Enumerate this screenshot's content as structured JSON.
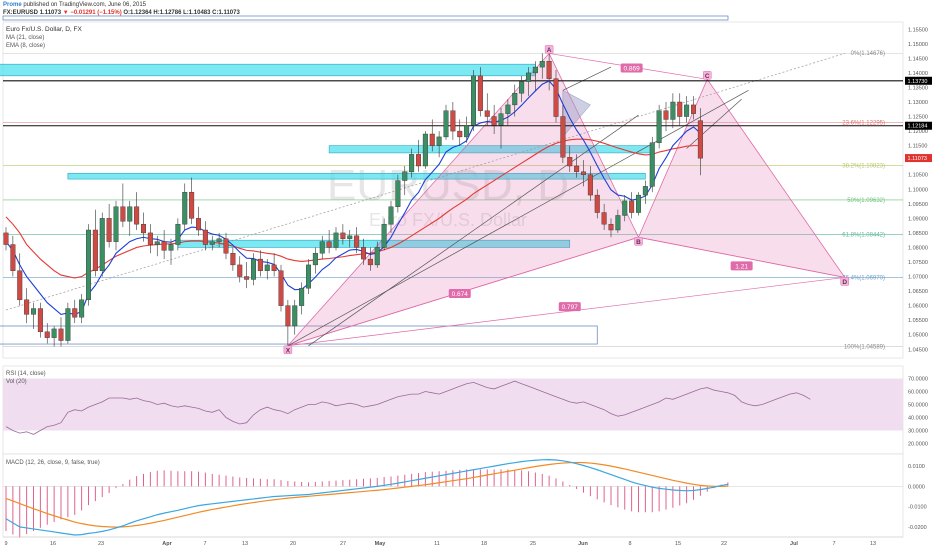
{
  "header": {
    "user": "Prome",
    "published": "published on TradingView.com, June 06, 2015",
    "symbol": "FX:EURUSD",
    "last": "1.11073",
    "change": "−0.01291 (−1.15%)",
    "ohlc": "O:1.12364 H:1.12786 L:1.10483 C:1.11073"
  },
  "chart_data": {
    "type": "candlestick",
    "symbol_title": "Euro Fx/U.S. Dollar, D, FX",
    "watermark": "EURUSD, D",
    "watermark_sub": "Euro FX/U.S. Dollar",
    "indicator_labels": [
      "MA (21, close)",
      "EMA (8, close)"
    ],
    "colors": {
      "up": "#3c8f64",
      "down": "#d04a44",
      "ma": "#e53935",
      "ema": "#1e3fd9",
      "pattern": "#e06aaa",
      "zone": "#50e0ec",
      "fib": "#8fd0a0",
      "rsi": "#9a6a9a",
      "macd": "#3aa7e0",
      "signal": "#f28a24",
      "hist": "#e0608e"
    },
    "x_ticks": [
      "9",
      "16",
      "23",
      "Apr",
      "7",
      "13",
      "20",
      "27",
      "May",
      "11",
      "18",
      "25",
      "Jun",
      "8",
      "15",
      "22",
      "Jul",
      "7",
      "13"
    ],
    "y_ticks": [
      "1.15500",
      "1.15000",
      "1.14500",
      "1.14000",
      "1.13500",
      "1.13000",
      "1.12500",
      "1.12000",
      "1.11500",
      "1.11000",
      "1.10500",
      "1.10000",
      "1.09500",
      "1.09000",
      "1.08500",
      "1.08000",
      "1.07500",
      "1.07000",
      "1.06500",
      "1.06000",
      "1.05500",
      "1.05000",
      "1.04500"
    ],
    "price_badges": [
      {
        "label": "1.13730",
        "value": 1.1373,
        "color": "#000000"
      },
      {
        "label": "1.12184",
        "value": 1.12184,
        "color": "#000000"
      },
      {
        "label": "1.11073",
        "value": 1.11073,
        "color": "#e0322f"
      }
    ],
    "fib_levels": [
      {
        "label": "0%(1.14676)",
        "value": 1.14676
      },
      {
        "label": "23.6%(1.12295)",
        "value": 1.12295
      },
      {
        "label": "38.2%(1.10823)",
        "value": 1.10823
      },
      {
        "label": "50%(1.09632)",
        "value": 1.09632
      },
      {
        "label": "61.8%(1.08442)",
        "value": 1.08442
      },
      {
        "label": "76.4%(1.06970)",
        "value": 1.0697
      },
      {
        "label": "100%(1.04589)",
        "value": 1.04589
      }
    ],
    "harmonic_points": [
      {
        "label": "X",
        "idx": 41,
        "price": 1.0462
      },
      {
        "label": "A",
        "idx": 79,
        "price": 1.1467
      },
      {
        "label": "B",
        "idx": 92,
        "price": 1.0835
      },
      {
        "label": "C",
        "idx": 102,
        "price": 1.1378
      },
      {
        "label": "D",
        "idx": 122,
        "price": 1.0697
      }
    ],
    "ratios": [
      {
        "label": "0.869",
        "idx": 91,
        "price": 1.1415
      },
      {
        "label": "0.674",
        "idx": 66,
        "price": 1.064
      },
      {
        "label": "0.797",
        "idx": 82,
        "price": 1.0595
      },
      {
        "label": "1.21",
        "idx": 107,
        "price": 1.0735
      }
    ],
    "candles": [
      [
        1.085,
        1.087,
        1.079,
        1.081
      ],
      [
        1.081,
        1.084,
        1.07,
        1.072
      ],
      [
        1.072,
        1.078,
        1.06,
        1.062
      ],
      [
        1.062,
        1.066,
        1.054,
        1.057
      ],
      [
        1.057,
        1.061,
        1.052,
        1.059
      ],
      [
        1.059,
        1.061,
        1.049,
        1.051
      ],
      [
        1.051,
        1.054,
        1.047,
        1.049
      ],
      [
        1.049,
        1.053,
        1.046,
        1.052
      ],
      [
        1.052,
        1.056,
        1.046,
        1.048
      ],
      [
        1.048,
        1.061,
        1.047,
        1.059
      ],
      [
        1.059,
        1.062,
        1.054,
        1.056
      ],
      [
        1.056,
        1.064,
        1.054,
        1.062
      ],
      [
        1.062,
        1.088,
        1.06,
        1.086
      ],
      [
        1.086,
        1.093,
        1.07,
        1.072
      ],
      [
        1.072,
        1.092,
        1.07,
        1.09
      ],
      [
        1.09,
        1.095,
        1.08,
        1.082
      ],
      [
        1.082,
        1.096,
        1.079,
        1.094
      ],
      [
        1.094,
        1.102,
        1.087,
        1.089
      ],
      [
        1.089,
        1.096,
        1.084,
        1.094
      ],
      [
        1.094,
        1.099,
        1.086,
        1.088
      ],
      [
        1.088,
        1.092,
        1.082,
        1.085
      ],
      [
        1.085,
        1.088,
        1.078,
        1.081
      ],
      [
        1.081,
        1.084,
        1.077,
        1.082
      ],
      [
        1.082,
        1.086,
        1.076,
        1.079
      ],
      [
        1.079,
        1.083,
        1.074,
        1.081
      ],
      [
        1.081,
        1.09,
        1.079,
        1.088
      ],
      [
        1.088,
        1.102,
        1.086,
        1.099
      ],
      [
        1.099,
        1.104,
        1.088,
        1.09
      ],
      [
        1.09,
        1.094,
        1.084,
        1.086
      ],
      [
        1.086,
        1.089,
        1.079,
        1.081
      ],
      [
        1.081,
        1.084,
        1.079,
        1.082
      ],
      [
        1.082,
        1.085,
        1.08,
        1.083
      ],
      [
        1.083,
        1.085,
        1.076,
        1.078
      ],
      [
        1.078,
        1.08,
        1.072,
        1.074
      ],
      [
        1.074,
        1.077,
        1.068,
        1.07
      ],
      [
        1.07,
        1.075,
        1.066,
        1.069
      ],
      [
        1.069,
        1.078,
        1.067,
        1.076
      ],
      [
        1.076,
        1.079,
        1.07,
        1.072
      ],
      [
        1.072,
        1.076,
        1.069,
        1.074
      ],
      [
        1.074,
        1.078,
        1.07,
        1.072
      ],
      [
        1.072,
        1.074,
        1.058,
        1.06
      ],
      [
        1.06,
        1.062,
        1.0462,
        1.053
      ],
      [
        1.053,
        1.062,
        1.05,
        1.06
      ],
      [
        1.06,
        1.068,
        1.057,
        1.066
      ],
      [
        1.066,
        1.076,
        1.064,
        1.074
      ],
      [
        1.074,
        1.08,
        1.071,
        1.078
      ],
      [
        1.078,
        1.084,
        1.076,
        1.082
      ],
      [
        1.082,
        1.086,
        1.078,
        1.08
      ],
      [
        1.08,
        1.087,
        1.079,
        1.085
      ],
      [
        1.085,
        1.088,
        1.081,
        1.083
      ],
      [
        1.083,
        1.086,
        1.08,
        1.084
      ],
      [
        1.084,
        1.087,
        1.078,
        1.08
      ],
      [
        1.08,
        1.083,
        1.074,
        1.076
      ],
      [
        1.076,
        1.08,
        1.072,
        1.074
      ],
      [
        1.074,
        1.082,
        1.073,
        1.08
      ],
      [
        1.08,
        1.09,
        1.079,
        1.088
      ],
      [
        1.088,
        1.096,
        1.085,
        1.094
      ],
      [
        1.094,
        1.105,
        1.092,
        1.103
      ],
      [
        1.103,
        1.108,
        1.098,
        1.106
      ],
      [
        1.106,
        1.114,
        1.104,
        1.112
      ],
      [
        1.112,
        1.117,
        1.106,
        1.108
      ],
      [
        1.108,
        1.12,
        1.107,
        1.119
      ],
      [
        1.119,
        1.124,
        1.113,
        1.115
      ],
      [
        1.115,
        1.12,
        1.111,
        1.118
      ],
      [
        1.118,
        1.129,
        1.117,
        1.127
      ],
      [
        1.127,
        1.13,
        1.117,
        1.12
      ],
      [
        1.12,
        1.124,
        1.115,
        1.118
      ],
      [
        1.118,
        1.125,
        1.116,
        1.122
      ],
      [
        1.122,
        1.141,
        1.12,
        1.139
      ],
      [
        1.139,
        1.142,
        1.125,
        1.127
      ],
      [
        1.127,
        1.133,
        1.122,
        1.125
      ],
      [
        1.125,
        1.129,
        1.119,
        1.122
      ],
      [
        1.122,
        1.128,
        1.114,
        1.126
      ],
      [
        1.126,
        1.131,
        1.122,
        1.129
      ],
      [
        1.129,
        1.136,
        1.125,
        1.133
      ],
      [
        1.133,
        1.139,
        1.13,
        1.137
      ],
      [
        1.137,
        1.142,
        1.132,
        1.14
      ],
      [
        1.14,
        1.144,
        1.134,
        1.142
      ],
      [
        1.142,
        1.1467,
        1.138,
        1.144
      ],
      [
        1.144,
        1.1467,
        1.134,
        1.138
      ],
      [
        1.138,
        1.141,
        1.123,
        1.125
      ],
      [
        1.125,
        1.129,
        1.109,
        1.111
      ],
      [
        1.111,
        1.115,
        1.106,
        1.108
      ],
      [
        1.108,
        1.112,
        1.104,
        1.106
      ],
      [
        1.106,
        1.11,
        1.101,
        1.105
      ],
      [
        1.105,
        1.108,
        1.096,
        1.098
      ],
      [
        1.098,
        1.1,
        1.09,
        1.092
      ],
      [
        1.092,
        1.095,
        1.086,
        1.088
      ],
      [
        1.088,
        1.09,
        1.0835,
        1.086
      ],
      [
        1.086,
        1.093,
        1.085,
        1.091
      ],
      [
        1.091,
        1.098,
        1.089,
        1.096
      ],
      [
        1.096,
        1.099,
        1.09,
        1.092
      ],
      [
        1.092,
        1.099,
        1.091,
        1.098
      ],
      [
        1.098,
        1.103,
        1.095,
        1.101
      ],
      [
        1.101,
        1.118,
        1.099,
        1.116
      ],
      [
        1.116,
        1.129,
        1.114,
        1.127
      ],
      [
        1.127,
        1.13,
        1.12,
        1.124
      ],
      [
        1.124,
        1.133,
        1.121,
        1.13
      ],
      [
        1.13,
        1.133,
        1.122,
        1.125
      ],
      [
        1.125,
        1.132,
        1.123,
        1.129
      ],
      [
        1.129,
        1.132,
        1.124,
        1.126
      ],
      [
        1.1236,
        1.1279,
        1.1048,
        1.1107
      ]
    ],
    "ma21": [
      1.0905,
      1.088,
      1.085,
      1.081,
      1.0785,
      1.076,
      1.074,
      1.072,
      1.0705,
      1.07,
      1.0695,
      1.07,
      1.0715,
      1.0725,
      1.074,
      1.0755,
      1.077,
      1.078,
      1.079,
      1.08,
      1.0805,
      1.0808,
      1.081,
      1.0812,
      1.0812,
      1.0815,
      1.082,
      1.0822,
      1.0822,
      1.082,
      1.0818,
      1.0815,
      1.081,
      1.0805,
      1.0797,
      1.079,
      1.0788,
      1.0784,
      1.078,
      1.0777,
      1.077,
      1.076,
      1.0755,
      1.0752,
      1.0754,
      1.0757,
      1.076,
      1.0762,
      1.0765,
      1.0768,
      1.0772,
      1.0775,
      1.0778,
      1.078,
      1.0785,
      1.0792,
      1.08,
      1.0812,
      1.0825,
      1.084,
      1.0855,
      1.087,
      1.0885,
      1.09,
      1.0918,
      1.0935,
      1.095,
      1.0966,
      1.0985,
      1.1,
      1.1015,
      1.103,
      1.1045,
      1.106,
      1.1075,
      1.109,
      1.1105,
      1.112,
      1.1135,
      1.1148,
      1.1158,
      1.1165,
      1.117,
      1.1172,
      1.1172,
      1.117,
      1.1165,
      1.1158,
      1.115,
      1.1142,
      1.1135,
      1.1128,
      1.1122,
      1.1118,
      1.112,
      1.1128,
      1.1133,
      1.1139,
      1.1143,
      1.1148,
      1.115,
      1.115
    ],
    "ema8": [
      1.082,
      1.079,
      1.074,
      1.07,
      1.067,
      1.064,
      1.061,
      1.059,
      1.057,
      1.0575,
      1.057,
      1.058,
      1.064,
      1.067,
      1.071,
      1.074,
      1.078,
      1.08,
      1.082,
      1.083,
      1.0835,
      1.083,
      1.0828,
      1.082,
      1.0818,
      1.0828,
      1.086,
      1.087,
      1.0868,
      1.0855,
      1.0846,
      1.0842,
      1.0828,
      1.0808,
      1.0784,
      1.0763,
      1.0762,
      1.0752,
      1.0749,
      1.0742,
      1.071,
      1.067,
      1.0655,
      1.0656,
      1.0675,
      1.0698,
      1.0724,
      1.0741,
      1.0765,
      1.0778,
      1.0791,
      1.0793,
      1.0786,
      1.0776,
      1.0781,
      1.0803,
      1.0835,
      1.0879,
      1.0919,
      1.0963,
      1.0989,
      1.1033,
      1.1059,
      1.1086,
      1.1128,
      1.1144,
      1.1152,
      1.1167,
      1.1217,
      1.1228,
      1.1233,
      1.123,
      1.1237,
      1.1248,
      1.1266,
      1.1289,
      1.1314,
      1.1338,
      1.1361,
      1.1372,
      1.1345,
      1.1293,
      1.1245,
      1.1203,
      1.1169,
      1.1127,
      1.1081,
      1.1037,
      1.0998,
      1.098,
      1.0976,
      1.0963,
      1.0967,
      1.0977,
      1.1015,
      1.1071,
      1.1108,
      1.115,
      1.1175,
      1.12,
      1.1214,
      1.1193
    ],
    "rsi": [
      33,
      30,
      28,
      29,
      27,
      30,
      33,
      34,
      36,
      44,
      46,
      45,
      48,
      50,
      52,
      55,
      55,
      55,
      54,
      55,
      53,
      52,
      50,
      51,
      49,
      48,
      49,
      48,
      47,
      45,
      44,
      46,
      40,
      37,
      35,
      36,
      42,
      46,
      48,
      46,
      45,
      43,
      46,
      48,
      50,
      50,
      52,
      51,
      49,
      50,
      51,
      50,
      48,
      49,
      50,
      52,
      54,
      56,
      57,
      58,
      58,
      60,
      59,
      58,
      60,
      62,
      64,
      66,
      67,
      65,
      63,
      62,
      64,
      66,
      68,
      66,
      64,
      62,
      60,
      58,
      56,
      54,
      52,
      51,
      52,
      50,
      48,
      46,
      43,
      41,
      42,
      44,
      46,
      48,
      50,
      52,
      55,
      54,
      56,
      58,
      60,
      62,
      63,
      61,
      60,
      59,
      57,
      52,
      50,
      49,
      50,
      52,
      54,
      56,
      58,
      59,
      57,
      54
    ],
    "rsi_axis": [
      "70.0000",
      "60.0000",
      "50.0000",
      "40.0000",
      "30.0000",
      "20.0000"
    ],
    "macd": [
      -0.016,
      -0.018,
      -0.02,
      -0.0205,
      -0.021,
      -0.0215,
      -0.022,
      -0.0225,
      -0.023,
      -0.0235,
      -0.024,
      -0.0238,
      -0.0232,
      -0.0228,
      -0.0222,
      -0.0215,
      -0.0205,
      -0.0195,
      -0.0182,
      -0.017,
      -0.016,
      -0.015,
      -0.014,
      -0.0132,
      -0.0125,
      -0.0118,
      -0.011,
      -0.0102,
      -0.0095,
      -0.009,
      -0.0086,
      -0.0082,
      -0.0078,
      -0.0074,
      -0.007,
      -0.0066,
      -0.0062,
      -0.0058,
      -0.0054,
      -0.005,
      -0.0048,
      -0.0046,
      -0.0044,
      -0.0042,
      -0.004,
      -0.0036,
      -0.0032,
      -0.0028,
      -0.0024,
      -0.002,
      -0.0016,
      -0.0012,
      -0.0008,
      -0.0004,
      0.0,
      0.0005,
      0.001,
      0.0016,
      0.0022,
      0.0028,
      0.0034,
      0.004,
      0.0046,
      0.0052,
      0.0058,
      0.0064,
      0.007,
      0.0076,
      0.0082,
      0.0088,
      0.0094,
      0.01,
      0.0106,
      0.0112,
      0.0117,
      0.0122,
      0.0126,
      0.0129,
      0.0131,
      0.0132,
      0.013,
      0.0126,
      0.012,
      0.0112,
      0.0103,
      0.0093,
      0.0082,
      0.007,
      0.0058,
      0.0046,
      0.0034,
      0.0022,
      0.0012,
      0.0004,
      -0.0004,
      -0.001,
      -0.0014,
      -0.0018,
      -0.002,
      -0.0022,
      -0.002,
      -0.0016,
      -0.001,
      -0.0004,
      0.0004,
      0.001
    ],
    "signal": [
      -0.006,
      -0.0072,
      -0.0085,
      -0.0098,
      -0.011,
      -0.0122,
      -0.0134,
      -0.0145,
      -0.0156,
      -0.0166,
      -0.0176,
      -0.0184,
      -0.019,
      -0.0195,
      -0.0198,
      -0.02,
      -0.0201,
      -0.02,
      -0.0197,
      -0.0193,
      -0.0188,
      -0.0182,
      -0.0175,
      -0.0168,
      -0.016,
      -0.0152,
      -0.0144,
      -0.0136,
      -0.0128,
      -0.0121,
      -0.0114,
      -0.0108,
      -0.0102,
      -0.0096,
      -0.009,
      -0.0085,
      -0.008,
      -0.0075,
      -0.007,
      -0.0066,
      -0.0062,
      -0.0058,
      -0.0055,
      -0.0052,
      -0.0049,
      -0.0046,
      -0.0043,
      -0.004,
      -0.0037,
      -0.0034,
      -0.0031,
      -0.0028,
      -0.0025,
      -0.0022,
      -0.0019,
      -0.0016,
      -0.0012,
      -0.0008,
      -0.0004,
      0.0,
      0.0004,
      0.0008,
      0.0013,
      0.0018,
      0.0023,
      0.0028,
      0.0033,
      0.0038,
      0.0044,
      0.005,
      0.0056,
      0.0062,
      0.0068,
      0.0074,
      0.008,
      0.0086,
      0.0092,
      0.0098,
      0.0103,
      0.0108,
      0.0112,
      0.0115,
      0.0117,
      0.0118,
      0.0117,
      0.0115,
      0.0111,
      0.0106,
      0.01,
      0.0093,
      0.0086,
      0.0078,
      0.007,
      0.0062,
      0.0054,
      0.0046,
      0.0038,
      0.003,
      0.0023,
      0.0016,
      0.001,
      0.0005,
      0.0002,
      0.0,
      0.0,
      0.0001
    ],
    "macd_axis": [
      "0.0100",
      "0.0000",
      "-0.0100",
      "-0.0200"
    ],
    "rsi_label": "RSI (14, close)",
    "vol_label": "Vol (20)",
    "macd_label": "MACD (12, 26, close, 9, false, true)"
  }
}
